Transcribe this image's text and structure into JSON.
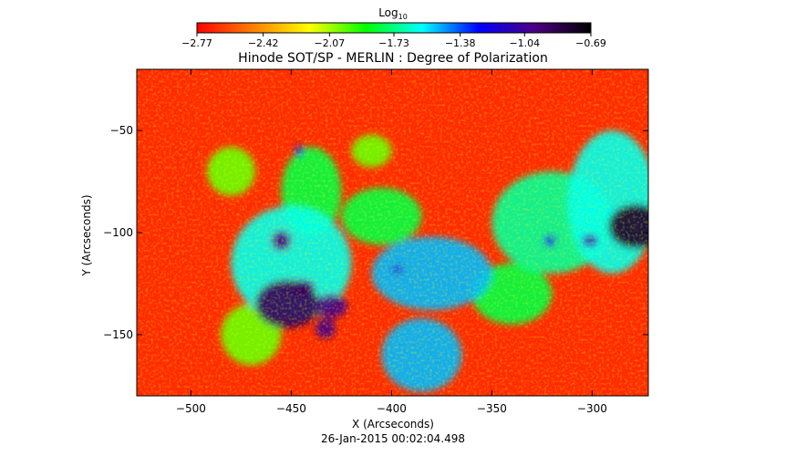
{
  "chart_data": {
    "type": "heatmap",
    "title": "Hinode SOT/SP - MERLIN : Degree of Polarization",
    "subtitle": "26-Jan-2015 00:02:04.498",
    "xlabel": "X (Arcseconds)",
    "ylabel": "Y (Arcseconds)",
    "xlim": [
      -527,
      -272
    ],
    "ylim": [
      -180,
      -20
    ],
    "x_ticks": [
      -500,
      -450,
      -400,
      -350,
      -300
    ],
    "y_ticks": [
      -50,
      -100,
      -150
    ],
    "x_tick_labels": [
      "−500",
      "−450",
      "−400",
      "−350",
      "−300"
    ],
    "y_tick_labels": [
      "−50",
      "−100",
      "−150"
    ],
    "colorbar": {
      "title_main": "Log",
      "title_sub": "10",
      "range": [
        -2.77,
        -0.69
      ],
      "tick_values": [
        -2.77,
        -2.42,
        -2.07,
        -1.73,
        -1.38,
        -1.04,
        -0.69
      ],
      "tick_labels": [
        "−2.77",
        "−2.42",
        "−2.07",
        "−1.73",
        "−1.38",
        "−1.04",
        "−0.69"
      ],
      "colormap": [
        "#ff0000",
        "#ff8000",
        "#ffff00",
        "#00ff00",
        "#00ffff",
        "#0000ff",
        "#4b0082",
        "#000000"
      ]
    },
    "features": [
      {
        "x": -452,
        "y": -135,
        "rx": 16,
        "ry": 12,
        "value": -0.9
      },
      {
        "x": -430,
        "y": -136,
        "rx": 8,
        "ry": 6,
        "value": -1.0
      },
      {
        "x": -433,
        "y": -147,
        "rx": 5,
        "ry": 5,
        "value": -1.0
      },
      {
        "x": -444,
        "y": -127,
        "rx": 6,
        "ry": 4,
        "value": -1.0
      },
      {
        "x": -455,
        "y": -104,
        "rx": 5,
        "ry": 5,
        "value": -1.0
      },
      {
        "x": -278,
        "y": -97,
        "rx": 14,
        "ry": 11,
        "value": -0.8
      },
      {
        "x": -301,
        "y": -104,
        "rx": 4,
        "ry": 3,
        "value": -1.1
      },
      {
        "x": -321,
        "y": -104,
        "rx": 3,
        "ry": 3,
        "value": -1.2
      },
      {
        "x": -397,
        "y": -118,
        "rx": 3,
        "ry": 2,
        "value": -1.2
      },
      {
        "x": -446,
        "y": -60,
        "rx": 2,
        "ry": 3,
        "value": -1.2
      },
      {
        "x": -405,
        "y": -92,
        "rx": 20,
        "ry": 14,
        "value": -1.8
      },
      {
        "x": -380,
        "y": -120,
        "rx": 30,
        "ry": 18,
        "value": -1.5
      },
      {
        "x": -385,
        "y": -160,
        "rx": 20,
        "ry": 18,
        "value": -1.5
      },
      {
        "x": -450,
        "y": -115,
        "rx": 30,
        "ry": 28,
        "value": -1.6
      },
      {
        "x": -440,
        "y": -80,
        "rx": 15,
        "ry": 22,
        "value": -1.8
      },
      {
        "x": -320,
        "y": -95,
        "rx": 30,
        "ry": 25,
        "value": -1.7
      },
      {
        "x": -290,
        "y": -85,
        "rx": 22,
        "ry": 35,
        "value": -1.6
      },
      {
        "x": -340,
        "y": -130,
        "rx": 20,
        "ry": 15,
        "value": -1.8
      },
      {
        "x": -470,
        "y": -150,
        "rx": 15,
        "ry": 15,
        "value": -2.0
      },
      {
        "x": -480,
        "y": -70,
        "rx": 12,
        "ry": 12,
        "value": -2.0
      },
      {
        "x": -410,
        "y": -60,
        "rx": 10,
        "ry": 8,
        "value": -2.0
      }
    ]
  }
}
